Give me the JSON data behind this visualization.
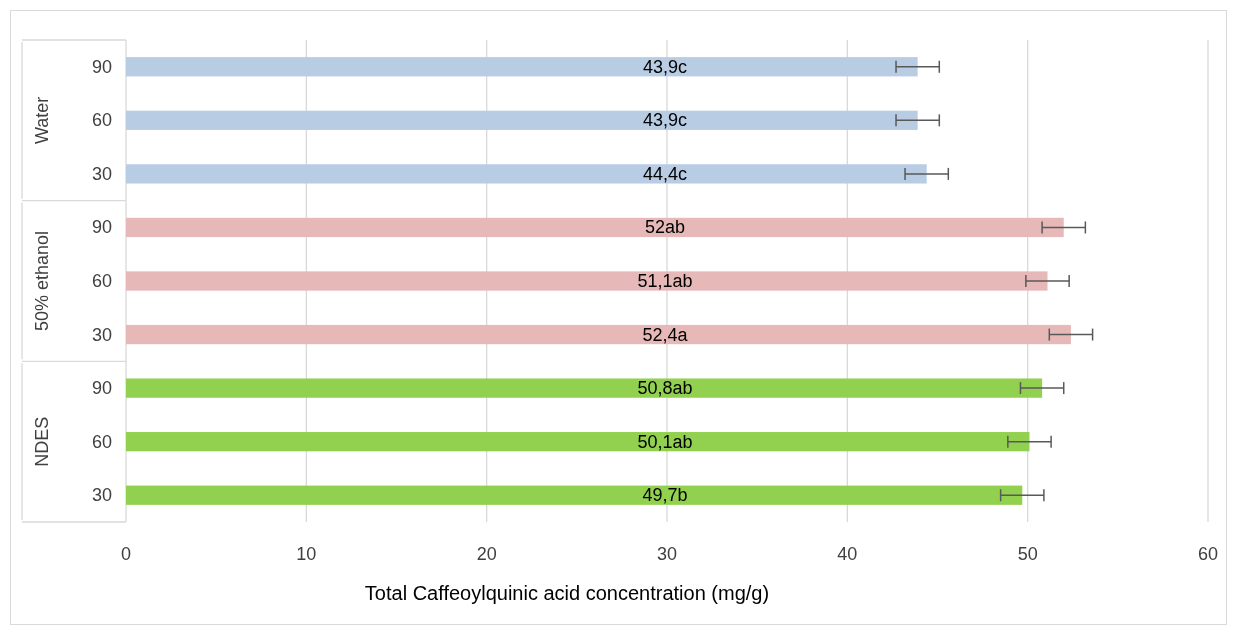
{
  "chart_data": {
    "type": "bar",
    "orientation": "horizontal",
    "xlabel": "Total Caffeoylquinic acid concentration (mg/g)",
    "categories": [
      "90",
      "60",
      "30",
      "90",
      "60",
      "30",
      "90",
      "60",
      "30"
    ],
    "values": [
      43.9,
      43.9,
      44.4,
      52,
      51.1,
      52.4,
      50.8,
      50.1,
      49.7
    ],
    "colors": [
      "#b8cce4",
      "#b8cce4",
      "#b8cce4",
      "#e6b9b8",
      "#e6b9b8",
      "#e6b9b8",
      "#92d050",
      "#92d050",
      "#92d050"
    ],
    "errors": [
      1.2,
      1.2,
      1.2,
      1.2,
      1.2,
      1.2,
      1.2,
      1.2,
      1.2
    ],
    "value_labels": [
      "43,9c",
      "43,9c",
      "44,4c",
      "52ab",
      "51,1ab",
      "52,4a",
      "50,8ab",
      "50,1ab",
      "49,7b"
    ],
    "annotations": [
      "Water",
      "50% ethanol",
      "NDES"
    ],
    "xlim": [
      0,
      60
    ],
    "xticks": [
      0,
      10,
      20,
      30,
      40,
      50,
      60
    ],
    "grid": "x"
  }
}
